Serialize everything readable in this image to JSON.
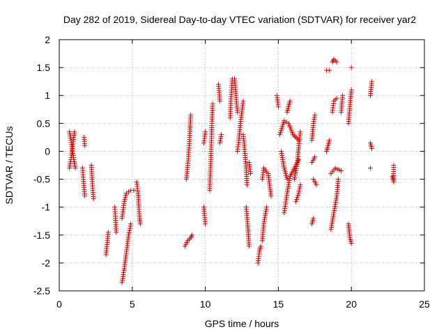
{
  "chart_data": {
    "type": "scatter",
    "title": "Day 282 of 2019, Sidereal Day-to-day VTEC variation (SDTVAR) for receiver yar2",
    "xlabel": "GPS time / hours",
    "ylabel": "SDTVAR / TECUs",
    "xlim": [
      0,
      25
    ],
    "ylim": [
      -2.5,
      2
    ],
    "xticks": [
      "0",
      "5",
      "10",
      "15",
      "20",
      "25"
    ],
    "yticks": [
      "2",
      "1.5",
      "1",
      "0.5",
      "0",
      "-0.5",
      "-1",
      "-1.5",
      "-2",
      "-2.5"
    ],
    "grid": true,
    "marker": "+",
    "colors": {
      "series": "#e00000"
    },
    "segments": [
      [
        [
          0.7,
          0.35
        ],
        [
          0.8,
          0.2
        ],
        [
          0.9,
          0.0
        ],
        [
          1.0,
          -0.15
        ],
        [
          1.1,
          -0.3
        ]
      ],
      [
        [
          0.7,
          -0.3
        ],
        [
          0.8,
          -0.15
        ],
        [
          0.9,
          0.05
        ],
        [
          1.0,
          0.25
        ],
        [
          1.05,
          0.35
        ]
      ],
      [
        [
          1.6,
          -0.3
        ],
        [
          1.65,
          -0.5
        ],
        [
          1.7,
          -0.65
        ],
        [
          1.75,
          -0.8
        ]
      ],
      [
        [
          1.7,
          0.25
        ],
        [
          1.75,
          0.1
        ]
      ],
      [
        [
          2.2,
          -0.25
        ],
        [
          2.25,
          -0.5
        ],
        [
          2.3,
          -0.7
        ],
        [
          2.35,
          -0.85
        ]
      ],
      [
        [
          3.2,
          -1.85
        ],
        [
          3.3,
          -1.6
        ],
        [
          3.35,
          -1.45
        ]
      ],
      [
        [
          3.8,
          -1.0
        ],
        [
          3.85,
          -1.2
        ],
        [
          3.9,
          -1.45
        ]
      ],
      [
        [
          4.3,
          -2.35
        ],
        [
          4.45,
          -2.1
        ],
        [
          4.6,
          -1.8
        ],
        [
          4.75,
          -1.5
        ],
        [
          4.9,
          -1.3
        ]
      ],
      [
        [
          4.3,
          -1.2
        ],
        [
          4.45,
          -0.9
        ],
        [
          4.6,
          -0.75
        ],
        [
          4.9,
          -0.7
        ],
        [
          5.1,
          -0.7
        ]
      ],
      [
        [
          5.3,
          -0.55
        ],
        [
          5.4,
          -0.75
        ],
        [
          5.45,
          -1.0
        ],
        [
          5.5,
          -1.2
        ],
        [
          5.55,
          -1.3
        ]
      ],
      [
        [
          8.6,
          -1.7
        ],
        [
          8.8,
          -1.6
        ],
        [
          9.0,
          -1.55
        ],
        [
          9.1,
          -1.5
        ]
      ],
      [
        [
          8.7,
          -0.5
        ],
        [
          8.8,
          -0.25
        ],
        [
          8.9,
          0.1
        ],
        [
          8.95,
          0.4
        ],
        [
          9.0,
          0.65
        ]
      ],
      [
        [
          9.9,
          0.15
        ],
        [
          10.0,
          0.35
        ]
      ],
      [
        [
          9.9,
          -1.0
        ],
        [
          10.0,
          -1.3
        ]
      ],
      [
        [
          10.3,
          -0.7
        ],
        [
          10.4,
          0.0
        ],
        [
          10.45,
          0.5
        ],
        [
          10.5,
          0.85
        ]
      ],
      [
        [
          10.9,
          1.2
        ],
        [
          11.0,
          0.9
        ]
      ],
      [
        [
          11.0,
          0.15
        ],
        [
          11.1,
          0.3
        ]
      ],
      [
        [
          11.7,
          0.6
        ],
        [
          11.75,
          0.9
        ],
        [
          11.8,
          1.1
        ],
        [
          11.85,
          1.3
        ]
      ],
      [
        [
          12.0,
          1.3
        ],
        [
          12.1,
          1.0
        ],
        [
          12.2,
          0.7
        ]
      ],
      [
        [
          12.2,
          0.0
        ],
        [
          12.3,
          0.2
        ],
        [
          12.4,
          0.5
        ],
        [
          12.6,
          0.9
        ]
      ],
      [
        [
          12.6,
          0.3
        ],
        [
          12.7,
          0.0
        ],
        [
          12.8,
          -0.3
        ],
        [
          12.85,
          -0.6
        ]
      ],
      [
        [
          12.8,
          -1.0
        ],
        [
          12.9,
          -1.3
        ],
        [
          13.0,
          -1.7
        ]
      ],
      [
        [
          13.0,
          -0.2
        ],
        [
          13.1,
          -0.4
        ]
      ],
      [
        [
          13.6,
          -2.0
        ],
        [
          13.7,
          -1.8
        ],
        [
          13.8,
          -1.7
        ]
      ],
      [
        [
          13.9,
          -1.6
        ],
        [
          14.0,
          -1.3
        ],
        [
          14.2,
          -1.0
        ]
      ],
      [
        [
          13.9,
          -0.5
        ],
        [
          14.0,
          -0.3
        ],
        [
          14.3,
          -0.4
        ],
        [
          14.5,
          -0.8
        ]
      ],
      [
        [
          14.9,
          1.0
        ],
        [
          15.0,
          0.8
        ]
      ],
      [
        [
          15.1,
          0.3
        ],
        [
          15.4,
          0.55
        ],
        [
          15.7,
          0.5
        ],
        [
          16.0,
          0.3
        ],
        [
          16.4,
          0.2
        ]
      ],
      [
        [
          15.2,
          0.0
        ],
        [
          15.4,
          -0.3
        ],
        [
          15.6,
          -0.5
        ]
      ],
      [
        [
          15.4,
          -1.1
        ],
        [
          15.6,
          -0.75
        ],
        [
          15.8,
          -0.45
        ],
        [
          16.1,
          -0.3
        ],
        [
          16.4,
          -0.15
        ]
      ],
      [
        [
          16.1,
          -0.5
        ],
        [
          16.3,
          -0.2
        ],
        [
          16.4,
          0.1
        ],
        [
          16.5,
          0.35
        ]
      ],
      [
        [
          16.5,
          -0.6
        ],
        [
          16.4,
          -0.75
        ],
        [
          16.2,
          -0.9
        ]
      ],
      [
        [
          15.6,
          0.7
        ],
        [
          15.8,
          0.9
        ]
      ],
      [
        [
          17.3,
          -1.3
        ],
        [
          17.4,
          -1.2
        ]
      ],
      [
        [
          17.4,
          -0.5
        ],
        [
          17.6,
          -0.6
        ]
      ],
      [
        [
          17.3,
          0.2
        ],
        [
          17.4,
          0.5
        ],
        [
          17.5,
          0.65
        ]
      ],
      [
        [
          17.3,
          -0.2
        ],
        [
          17.5,
          -0.1
        ]
      ],
      [
        [
          18.3,
          1.45
        ],
        [
          18.5,
          1.45
        ]
      ],
      [
        [
          18.7,
          1.6
        ],
        [
          18.8,
          1.65
        ],
        [
          19.0,
          1.6
        ]
      ],
      [
        [
          18.3,
          0.0
        ],
        [
          18.5,
          0.2
        ]
      ],
      [
        [
          18.6,
          -1.4
        ],
        [
          18.8,
          -1.1
        ],
        [
          19.0,
          -0.8
        ],
        [
          19.1,
          -0.5
        ]
      ],
      [
        [
          18.7,
          0.7
        ],
        [
          18.8,
          0.9
        ],
        [
          19.0,
          0.95
        ]
      ],
      [
        [
          18.6,
          -0.4
        ],
        [
          18.9,
          -0.3
        ],
        [
          19.3,
          -0.35
        ]
      ],
      [
        [
          19.3,
          0.7
        ],
        [
          19.4,
          1.0
        ]
      ],
      [
        [
          19.8,
          0.5
        ],
        [
          19.9,
          0.8
        ],
        [
          20.0,
          1.1
        ]
      ],
      [
        [
          19.8,
          -1.3
        ],
        [
          19.9,
          -1.55
        ],
        [
          20.0,
          -1.65
        ]
      ],
      [
        [
          20.0,
          1.5
        ]
      ],
      [
        [
          21.4,
          1.25
        ],
        [
          21.3,
          1.0
        ]
      ],
      [
        [
          21.3,
          0.15
        ],
        [
          21.4,
          0.05
        ]
      ],
      [
        [
          21.3,
          -0.3
        ]
      ],
      [
        [
          22.8,
          -0.45
        ],
        [
          22.9,
          -0.55
        ],
        [
          22.9,
          -0.25
        ]
      ]
    ]
  }
}
